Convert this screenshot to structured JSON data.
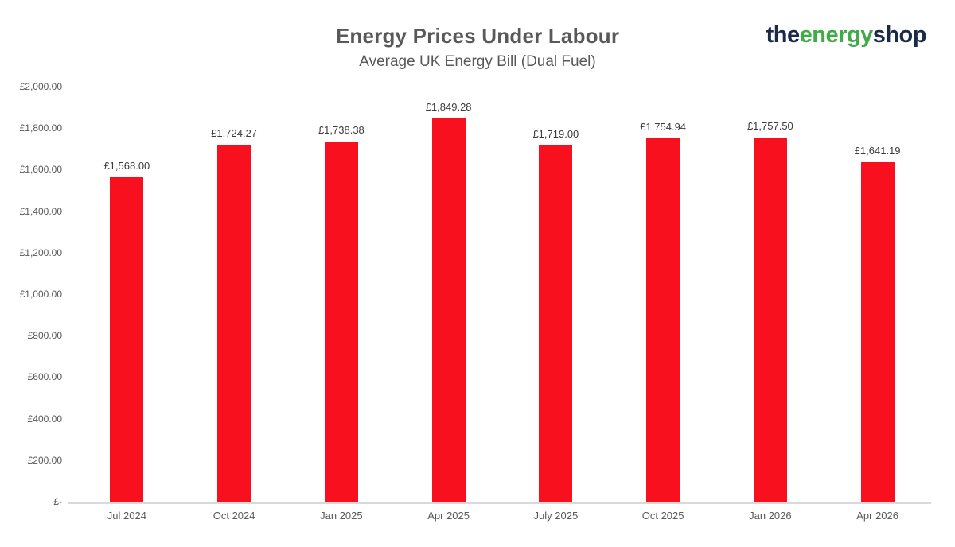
{
  "header": {
    "title": "Energy Prices Under Labour",
    "subtitle": "Average UK Energy Bill (Dual Fuel)",
    "logo": {
      "part1": "the",
      "part2": "energy",
      "part3": "shop",
      "navy_color": "#1b2a49",
      "green_color": "#41ab49"
    }
  },
  "chart_data": {
    "type": "bar",
    "title": "Energy Prices Under Labour",
    "subtitle": "Average UK Energy Bill (Dual Fuel)",
    "categories": [
      "Jul 2024",
      "Oct 2024",
      "Jan 2025",
      "Apr 2025",
      "July 2025",
      "Oct 2025",
      "Jan 2026",
      "Apr 2026"
    ],
    "values": [
      1568.0,
      1724.27,
      1738.38,
      1849.28,
      1719.0,
      1754.94,
      1757.5,
      1641.19
    ],
    "value_labels": [
      "£1,568.00",
      "£1,724.27",
      "£1,738.38",
      "£1,849.28",
      "£1,719.00",
      "£1,754.94",
      "£1,757.50",
      "£1,641.19"
    ],
    "bar_color": "#f9101e",
    "xlabel": "",
    "ylabel": "",
    "ylim": [
      0,
      2000
    ],
    "grid": false,
    "legend": "none",
    "y_ticks": [
      {
        "value": 0,
        "label": "£-"
      },
      {
        "value": 200,
        "label": "£200.00"
      },
      {
        "value": 400,
        "label": "£400.00"
      },
      {
        "value": 600,
        "label": "£600.00"
      },
      {
        "value": 800,
        "label": "£800.00"
      },
      {
        "value": 1000,
        "label": "£1,000.00"
      },
      {
        "value": 1200,
        "label": "£1,200.00"
      },
      {
        "value": 1400,
        "label": "£1,400.00"
      },
      {
        "value": 1600,
        "label": "£1,600.00"
      },
      {
        "value": 1800,
        "label": "£1,800.00"
      },
      {
        "value": 2000,
        "label": "£2,000.00"
      }
    ]
  }
}
